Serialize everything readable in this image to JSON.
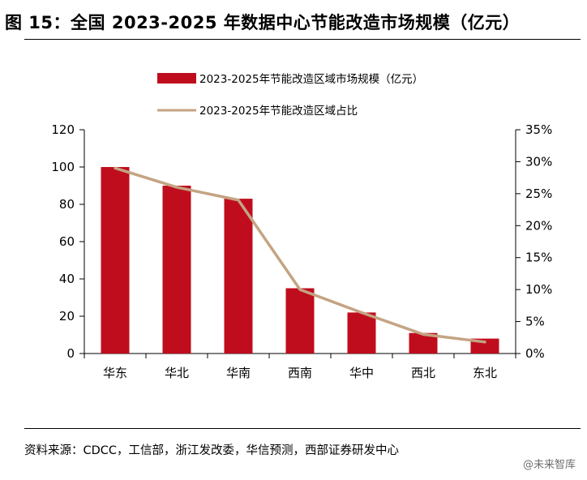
{
  "figure": {
    "title": "图 15：全国 2023-2025 年数据中心节能改造市场规模（亿元）",
    "source": "资料来源：CDCC，工信部，浙江发改委，华信预测，西部证券研发中心",
    "watermark": "@未来智库"
  },
  "colors": {
    "bar": "#c00d1e",
    "line": "#c4a482",
    "axis": "#000000"
  },
  "chart_data": {
    "type": "bar",
    "title": "",
    "categories": [
      "华东",
      "华北",
      "华南",
      "西南",
      "华中",
      "西北",
      "东北"
    ],
    "series": [
      {
        "name": "2023-2025年节能改造区域市场规模（亿元）",
        "type": "bar",
        "axis": "left",
        "values": [
          100,
          90,
          83,
          35,
          22,
          11,
          8
        ]
      },
      {
        "name": "2023-2025年节能改造区域占比",
        "type": "line",
        "axis": "right",
        "values": [
          0.29,
          0.26,
          0.24,
          0.1,
          0.064,
          0.03,
          0.018
        ]
      }
    ],
    "y_left": {
      "range": [
        0,
        120
      ],
      "ticks": [
        "0",
        "20",
        "40",
        "60",
        "80",
        "100",
        "120"
      ]
    },
    "y_right": {
      "range": [
        0,
        0.35
      ],
      "ticks": [
        "0%",
        "5%",
        "10%",
        "15%",
        "20%",
        "25%",
        "30%",
        "35%"
      ]
    },
    "xlabel": "",
    "ylabel": "",
    "legend_position": "top-center",
    "grid": false
  }
}
